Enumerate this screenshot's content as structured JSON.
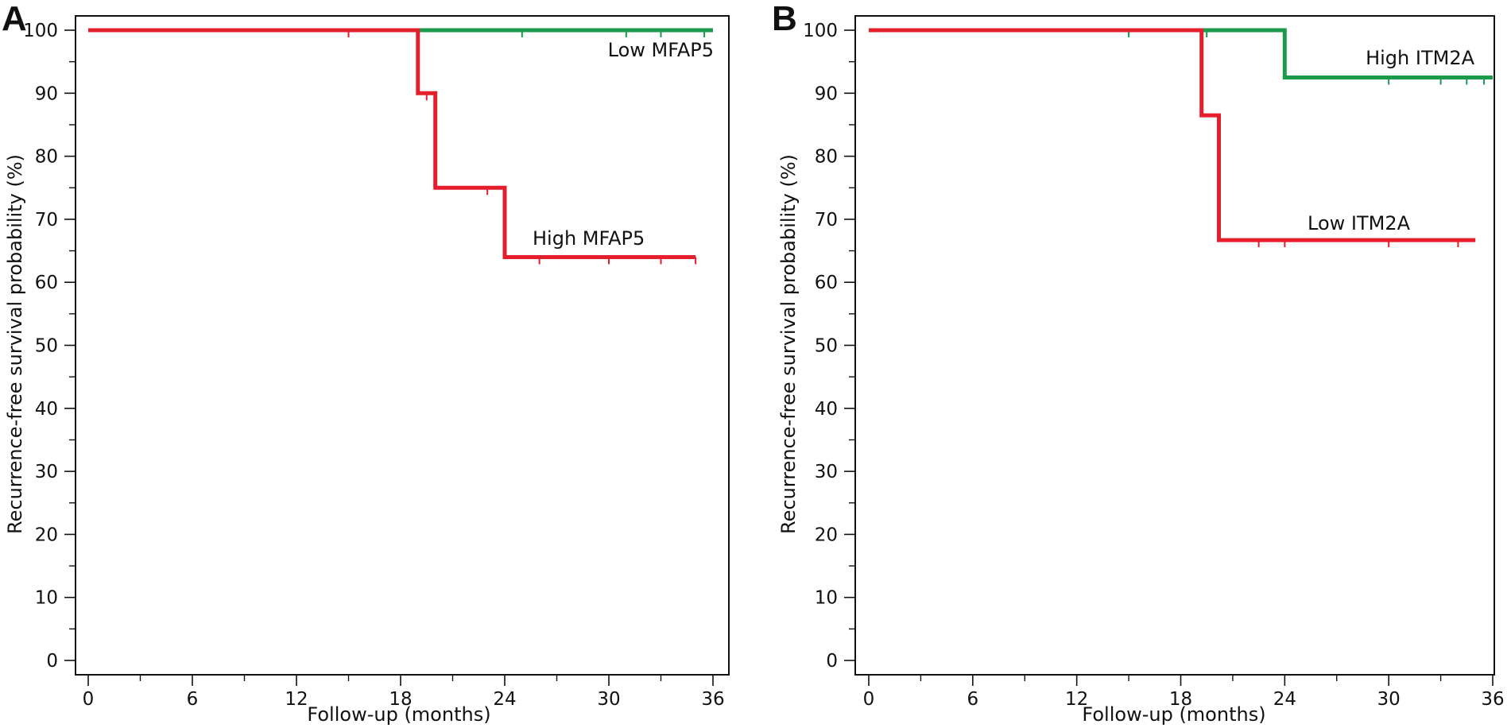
{
  "colors": {
    "high_risk_red": "#e41e2b",
    "low_risk_green": "#1a9a4a",
    "axis": "#111111"
  },
  "chart_data": [
    {
      "panel": "A",
      "type": "line",
      "step": true,
      "xlabel": "Follow-up (months)",
      "ylabel": "Recurrence-free survival probability (%)",
      "xlim": [
        0,
        36
      ],
      "ylim": [
        0,
        100
      ],
      "xticks": [
        0,
        6,
        12,
        18,
        24,
        30,
        36
      ],
      "yticks": [
        0,
        10,
        20,
        30,
        40,
        50,
        60,
        70,
        80,
        90,
        100
      ],
      "grid": false,
      "series": [
        {
          "name": "Low MFAP5",
          "color": "#1a9a4a",
          "points": [
            [
              0,
              100
            ],
            [
              36,
              100
            ]
          ],
          "censor_x": [
            19,
            25,
            31,
            33,
            35.5
          ]
        },
        {
          "name": "High MFAP5",
          "color": "#e41e2b",
          "points": [
            [
              0,
              100
            ],
            [
              19,
              100
            ],
            [
              19,
              90
            ],
            [
              20,
              90
            ],
            [
              20,
              75
            ],
            [
              24,
              75
            ],
            [
              24,
              64
            ],
            [
              35,
              64
            ]
          ],
          "censor_x": [
            15,
            19.5,
            23,
            26,
            30,
            33,
            35
          ]
        }
      ]
    },
    {
      "panel": "B",
      "type": "line",
      "step": true,
      "xlabel": "Follow-up (months)",
      "ylabel": "Recurrence-free survival probability (%)",
      "xlim": [
        0,
        36
      ],
      "ylim": [
        0,
        100
      ],
      "xticks": [
        0,
        6,
        12,
        18,
        24,
        30,
        36
      ],
      "yticks": [
        0,
        10,
        20,
        30,
        40,
        50,
        60,
        70,
        80,
        90,
        100
      ],
      "grid": false,
      "series": [
        {
          "name": "High ITM2A",
          "color": "#1a9a4a",
          "points": [
            [
              0,
              100
            ],
            [
              24,
              100
            ],
            [
              24,
              92.5
            ],
            [
              36,
              92.5
            ]
          ],
          "censor_x": [
            15,
            19.5,
            30,
            33,
            34.5,
            35.5
          ]
        },
        {
          "name": "Low ITM2A",
          "color": "#e41e2b",
          "points": [
            [
              0,
              100
            ],
            [
              19.2,
              100
            ],
            [
              19.2,
              86.5
            ],
            [
              20.2,
              86.5
            ],
            [
              20.2,
              66.7
            ],
            [
              35,
              66.7
            ]
          ],
          "censor_x": [
            22.5,
            24,
            30,
            34
          ]
        }
      ]
    }
  ]
}
